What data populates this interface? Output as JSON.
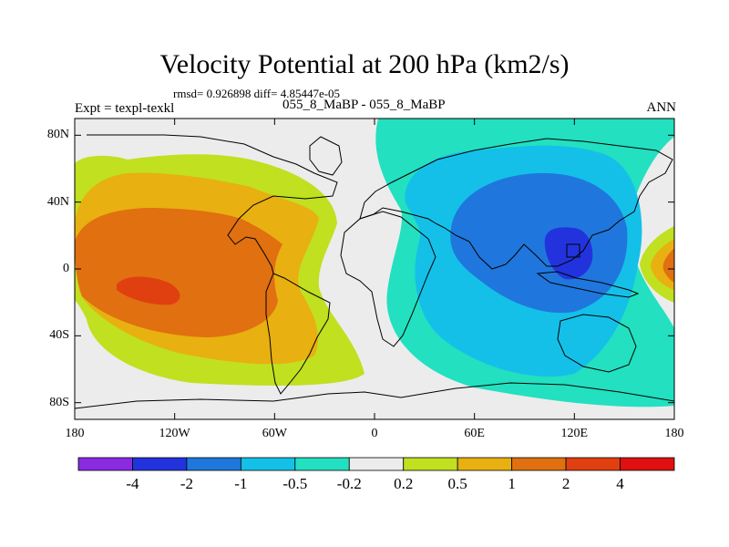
{
  "title": "Velocity Potential at 200 hPa (km2/s)",
  "stats_text": "rmsd= 0.926898 diff= 4.85447e-05",
  "expt_text": "Expt = texpl-texkl",
  "cases_text": "055_8_MaBP - 055_8_MaBP",
  "season": "ANN",
  "chart_data": {
    "type": "heatmap",
    "title": "Velocity Potential at 200 hPa (km2/s)",
    "units": "km2/s",
    "x_range": [
      -180,
      180
    ],
    "y_range": [
      -90,
      90
    ],
    "xticks": [
      {
        "value": -180,
        "label": "180"
      },
      {
        "value": -120,
        "label": "120W"
      },
      {
        "value": -60,
        "label": "60W"
      },
      {
        "value": 0,
        "label": "0"
      },
      {
        "value": 60,
        "label": "60E"
      },
      {
        "value": 120,
        "label": "120E"
      },
      {
        "value": 180,
        "label": "180"
      }
    ],
    "yticks": [
      {
        "value": 80,
        "label": "80N"
      },
      {
        "value": 40,
        "label": "40N"
      },
      {
        "value": 0,
        "label": "0"
      },
      {
        "value": -40,
        "label": "40S"
      },
      {
        "value": -80,
        "label": "80S"
      }
    ],
    "contour_levels": [
      "-4",
      "-2",
      "-1",
      "-0.5",
      "-0.2",
      "0.2",
      "0.5",
      "1",
      "2",
      "4"
    ],
    "colorbar_colors": [
      "#8a2be2",
      "#2233dd",
      "#1f77dd",
      "#14c0e8",
      "#22e0c0",
      "#ececec",
      "#c0e020",
      "#e8b010",
      "#e07010",
      "#e04010",
      "#e01010"
    ],
    "features": [
      {
        "name": "positive maximum",
        "lon": -130,
        "lat": -13,
        "approx_value": 2.5
      },
      {
        "name": "negative minimum",
        "lon": 120,
        "lat": 13,
        "approx_value": -4.2
      },
      {
        "name": "secondary positive lobe",
        "lon": 178,
        "lat": 0,
        "approx_value": 1.5
      }
    ]
  }
}
